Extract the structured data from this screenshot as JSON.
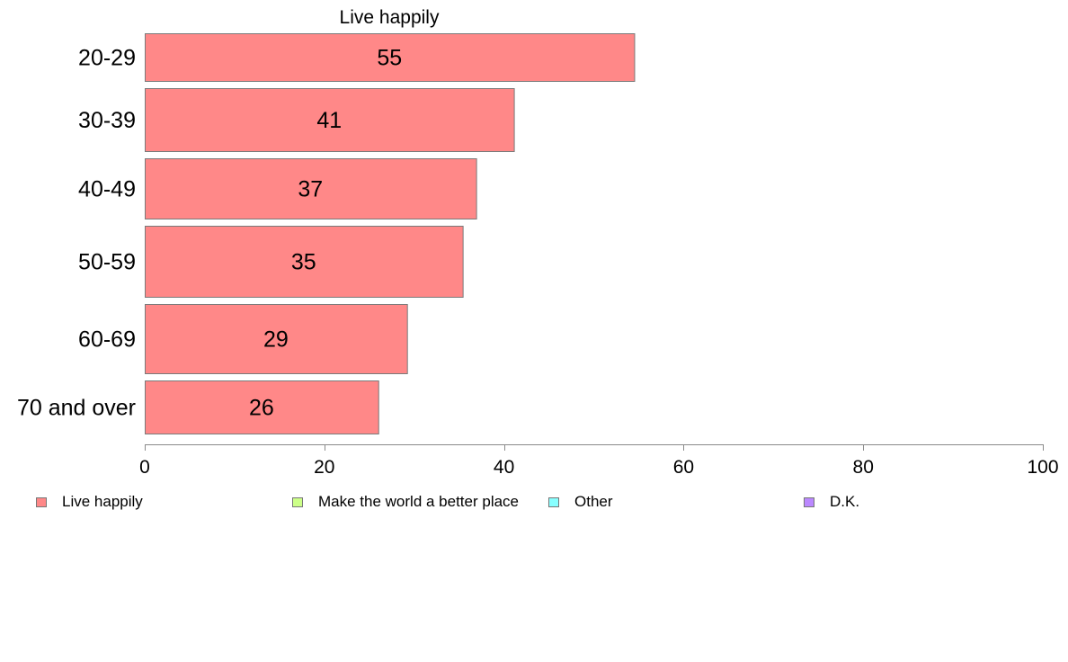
{
  "chart_data": {
    "type": "bar",
    "orientation": "horizontal",
    "title": "Live happily",
    "categories": [
      "20-29",
      "30-39",
      "40-49",
      "50-59",
      "60-69",
      "70 and over"
    ],
    "series": [
      {
        "name": "Live happily",
        "color": "#ff8888",
        "values": [
          55,
          41,
          37,
          35,
          29,
          26
        ],
        "plotted_values": [
          54.5,
          41.1,
          36.9,
          35.4,
          29.2,
          26.0
        ]
      }
    ],
    "xlim": [
      0,
      100
    ],
    "xticks": [
      "0",
      "20",
      "40",
      "60",
      "80",
      "100"
    ],
    "grid": false,
    "legend": {
      "placement": "bottom",
      "items": [
        {
          "label": "Live happily",
          "color": "#ff8888"
        },
        {
          "label": "Make the world a better place",
          "color": "#ccff88"
        },
        {
          "label": "Other",
          "color": "#88ffff"
        },
        {
          "label": "D.K.",
          "color": "#bb88ff"
        }
      ]
    }
  }
}
